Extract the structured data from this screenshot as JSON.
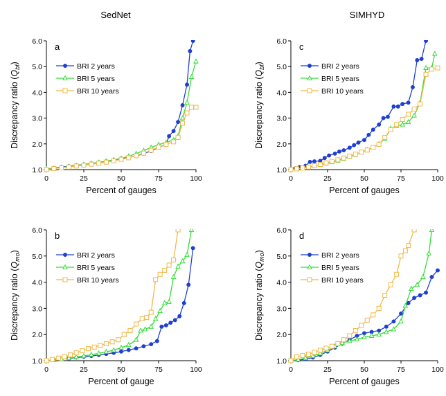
{
  "figure": {
    "column_titles": [
      "SedNet",
      "SIMHYD"
    ]
  },
  "chart_data": [
    {
      "type": "line",
      "panel_label": "a",
      "xlabel": "Percent of gauges",
      "ylabel_main": "Discrepancy ratio (",
      "ylabel_sym": "Q",
      "ylabel_sub": "bf",
      "ylabel_end": ")",
      "xlim": [
        0,
        100
      ],
      "ylim": [
        1.0,
        6.0
      ],
      "xticks": [
        "0",
        "25",
        "50",
        "75",
        "100"
      ],
      "yticks": [
        "1.0",
        "2.0",
        "3.0",
        "4.0",
        "5.0",
        "6.0"
      ],
      "legend_position": "top-left",
      "series": [
        {
          "name": "BRI 2 years",
          "color": "#1f3fd1",
          "marker": "circle",
          "x": [
            0,
            5,
            10,
            15,
            20,
            25,
            30,
            35,
            40,
            45,
            50,
            55,
            60,
            65,
            70,
            75,
            80,
            82,
            85,
            88,
            91,
            94,
            96,
            98
          ],
          "y": [
            1.02,
            1.06,
            1.1,
            1.13,
            1.17,
            1.2,
            1.24,
            1.28,
            1.32,
            1.37,
            1.42,
            1.47,
            1.53,
            1.62,
            1.72,
            1.86,
            1.98,
            2.3,
            2.5,
            2.85,
            3.5,
            4.3,
            5.6,
            6.0
          ]
        },
        {
          "name": "BRI 5 years",
          "color": "#33dd33",
          "marker": "triangle",
          "x": [
            0,
            5,
            10,
            15,
            20,
            25,
            30,
            35,
            40,
            45,
            50,
            55,
            60,
            65,
            70,
            75,
            80,
            85,
            88,
            91,
            94,
            97,
            100
          ],
          "y": [
            1.02,
            1.05,
            1.08,
            1.12,
            1.16,
            1.2,
            1.24,
            1.28,
            1.33,
            1.38,
            1.44,
            1.52,
            1.62,
            1.74,
            1.86,
            1.97,
            2.05,
            2.15,
            2.3,
            3.0,
            3.6,
            4.6,
            5.2
          ]
        },
        {
          "name": "BRI 10 years",
          "color": "#f0b84a",
          "marker": "square",
          "x": [
            0,
            5,
            10,
            15,
            20,
            25,
            30,
            35,
            40,
            45,
            50,
            55,
            60,
            65,
            70,
            75,
            80,
            85,
            88,
            91,
            94,
            97,
            100
          ],
          "y": [
            1.0,
            1.04,
            1.07,
            1.1,
            1.14,
            1.17,
            1.21,
            1.25,
            1.29,
            1.34,
            1.4,
            1.46,
            1.54,
            1.64,
            1.75,
            1.87,
            1.98,
            2.08,
            2.25,
            2.8,
            3.2,
            3.42,
            3.42
          ]
        }
      ]
    },
    {
      "type": "line",
      "panel_label": "c",
      "xlabel": "Percent of gauges",
      "ylabel_main": "Discrepancy ratio (",
      "ylabel_sym": "Q",
      "ylabel_sub": "bf",
      "ylabel_end": ")",
      "xlim": [
        0,
        100
      ],
      "ylim": [
        1.0,
        6.0
      ],
      "xticks": [
        "0",
        "25",
        "50",
        "75",
        "100"
      ],
      "yticks": [
        "1.0",
        "2.0",
        "3.0",
        "4.0",
        "5.0",
        "6.0"
      ],
      "legend_position": "top-left",
      "series": [
        {
          "name": "BRI 2 years",
          "color": "#1f3fd1",
          "marker": "circle",
          "x": [
            0,
            3,
            6,
            10,
            13,
            16,
            20,
            23,
            26,
            30,
            33,
            36,
            40,
            43,
            46,
            50,
            53,
            56,
            60,
            63,
            66,
            70,
            73,
            76,
            80,
            83,
            86,
            89,
            92
          ],
          "y": [
            1.0,
            1.05,
            1.1,
            1.15,
            1.3,
            1.32,
            1.34,
            1.45,
            1.55,
            1.62,
            1.7,
            1.75,
            1.85,
            1.95,
            2.05,
            2.15,
            2.35,
            2.55,
            2.75,
            3.0,
            3.05,
            3.45,
            3.45,
            3.55,
            3.6,
            4.2,
            5.25,
            5.3,
            6.0
          ]
        },
        {
          "name": "BRI 5 years",
          "color": "#33dd33",
          "marker": "triangle",
          "x": [
            0,
            4,
            8,
            12,
            16,
            20,
            24,
            28,
            32,
            36,
            40,
            44,
            48,
            52,
            56,
            60,
            64,
            68,
            72,
            76,
            80,
            84,
            88,
            92,
            96,
            98
          ],
          "y": [
            1.0,
            1.02,
            1.05,
            1.09,
            1.14,
            1.19,
            1.24,
            1.29,
            1.35,
            1.42,
            1.5,
            1.58,
            1.67,
            1.77,
            1.85,
            2.0,
            2.2,
            2.6,
            2.7,
            2.75,
            2.85,
            3.1,
            3.6,
            4.95,
            4.95,
            5.5
          ]
        },
        {
          "name": "BRI 10 years",
          "color": "#f0b84a",
          "marker": "square",
          "x": [
            0,
            4,
            8,
            12,
            16,
            20,
            24,
            28,
            32,
            36,
            40,
            44,
            48,
            52,
            56,
            60,
            64,
            68,
            72,
            76,
            80,
            84,
            88,
            92,
            96,
            100
          ],
          "y": [
            1.0,
            1.03,
            1.06,
            1.1,
            1.15,
            1.2,
            1.26,
            1.32,
            1.38,
            1.45,
            1.52,
            1.6,
            1.68,
            1.76,
            1.86,
            1.98,
            2.25,
            2.55,
            2.75,
            2.95,
            3.15,
            3.35,
            3.55,
            4.7,
            4.9,
            4.95
          ]
        }
      ]
    },
    {
      "type": "line",
      "panel_label": "b",
      "xlabel": "Percent of gauge",
      "ylabel_main": "Discrepancy ratio (",
      "ylabel_sym": "Q",
      "ylabel_sub": "mo",
      "ylabel_end": ")",
      "xlim": [
        0,
        100
      ],
      "ylim": [
        1.0,
        6.0
      ],
      "xticks": [
        "0",
        "25",
        "50",
        "75",
        "100"
      ],
      "yticks": [
        "1.0",
        "2.0",
        "3.0",
        "4.0",
        "5.0",
        "6.0"
      ],
      "legend_position": "top-left",
      "series": [
        {
          "name": "BRI 2 years",
          "color": "#1f3fd1",
          "marker": "circle",
          "x": [
            0,
            5,
            10,
            15,
            20,
            25,
            30,
            35,
            40,
            45,
            50,
            55,
            60,
            65,
            70,
            74,
            77,
            80,
            83,
            86,
            89,
            92,
            95,
            98
          ],
          "y": [
            1.0,
            1.03,
            1.06,
            1.09,
            1.12,
            1.15,
            1.18,
            1.22,
            1.26,
            1.3,
            1.35,
            1.41,
            1.47,
            1.55,
            1.63,
            1.75,
            2.3,
            2.35,
            2.45,
            2.55,
            2.7,
            3.2,
            3.9,
            5.3
          ]
        },
        {
          "name": "BRI 5 years",
          "color": "#33dd33",
          "marker": "triangle",
          "x": [
            0,
            5,
            10,
            15,
            20,
            25,
            30,
            35,
            40,
            45,
            50,
            55,
            60,
            63,
            66,
            70,
            73,
            76,
            79,
            82,
            85,
            88,
            91,
            94,
            97
          ],
          "y": [
            1.0,
            1.03,
            1.06,
            1.1,
            1.14,
            1.18,
            1.23,
            1.28,
            1.34,
            1.4,
            1.5,
            1.6,
            1.8,
            2.15,
            2.2,
            2.3,
            2.6,
            2.9,
            3.2,
            3.25,
            4.2,
            4.6,
            4.8,
            5.05,
            6.0
          ]
        },
        {
          "name": "BRI 10 years",
          "color": "#f0b84a",
          "marker": "square",
          "x": [
            0,
            4,
            8,
            12,
            16,
            20,
            24,
            28,
            32,
            36,
            40,
            44,
            48,
            52,
            56,
            60,
            64,
            67,
            70,
            73,
            76,
            79,
            82,
            85,
            88
          ],
          "y": [
            1.0,
            1.05,
            1.1,
            1.15,
            1.22,
            1.3,
            1.38,
            1.46,
            1.52,
            1.58,
            1.65,
            1.72,
            1.8,
            2.0,
            2.15,
            2.4,
            2.6,
            2.65,
            2.85,
            4.1,
            4.3,
            4.45,
            4.65,
            4.85,
            6.0
          ]
        }
      ]
    },
    {
      "type": "line",
      "panel_label": "d",
      "xlabel": "Percent of gauges",
      "ylabel_main": "Discrepancy ratio (",
      "ylabel_sym": "Q",
      "ylabel_sub": "mo",
      "ylabel_end": ")",
      "xlim": [
        0,
        100
      ],
      "ylim": [
        1.0,
        6.0
      ],
      "xticks": [
        "0",
        "25",
        "50",
        "75",
        "100"
      ],
      "yticks": [
        "1.0",
        "2.0",
        "3.0",
        "4.0",
        "5.0",
        "6.0"
      ],
      "legend_position": "top-left",
      "series": [
        {
          "name": "BRI 2 years",
          "color": "#1f3fd1",
          "marker": "circle",
          "x": [
            0,
            5,
            10,
            15,
            20,
            25,
            30,
            35,
            40,
            45,
            50,
            55,
            60,
            65,
            70,
            75,
            80,
            84,
            88,
            92,
            96,
            100
          ],
          "y": [
            1.0,
            1.02,
            1.06,
            1.12,
            1.22,
            1.35,
            1.5,
            1.65,
            1.8,
            1.95,
            2.05,
            2.1,
            2.15,
            2.3,
            2.5,
            2.8,
            3.2,
            3.4,
            3.5,
            3.6,
            4.2,
            4.45
          ]
        },
        {
          "name": "BRI 5 years",
          "color": "#33dd33",
          "marker": "triangle",
          "x": [
            0,
            5,
            10,
            15,
            20,
            25,
            30,
            35,
            40,
            45,
            50,
            55,
            60,
            65,
            70,
            75,
            78,
            82,
            86,
            90,
            94,
            96
          ],
          "y": [
            1.0,
            1.04,
            1.1,
            1.18,
            1.28,
            1.4,
            1.55,
            1.68,
            1.75,
            1.82,
            1.9,
            1.95,
            2.0,
            2.1,
            2.2,
            2.5,
            3.1,
            3.75,
            3.9,
            4.2,
            5.1,
            6.0
          ]
        },
        {
          "name": "BRI 10 years",
          "color": "#f0b84a",
          "marker": "square",
          "x": [
            0,
            4,
            8,
            12,
            16,
            20,
            24,
            28,
            32,
            36,
            40,
            44,
            48,
            52,
            56,
            60,
            64,
            68,
            72,
            75,
            78,
            80,
            84
          ],
          "y": [
            1.0,
            1.15,
            1.2,
            1.25,
            1.32,
            1.4,
            1.48,
            1.55,
            1.65,
            1.8,
            1.95,
            2.15,
            2.35,
            2.55,
            2.75,
            3.0,
            3.5,
            3.9,
            4.3,
            5.0,
            5.2,
            5.4,
            6.0
          ]
        }
      ]
    }
  ]
}
